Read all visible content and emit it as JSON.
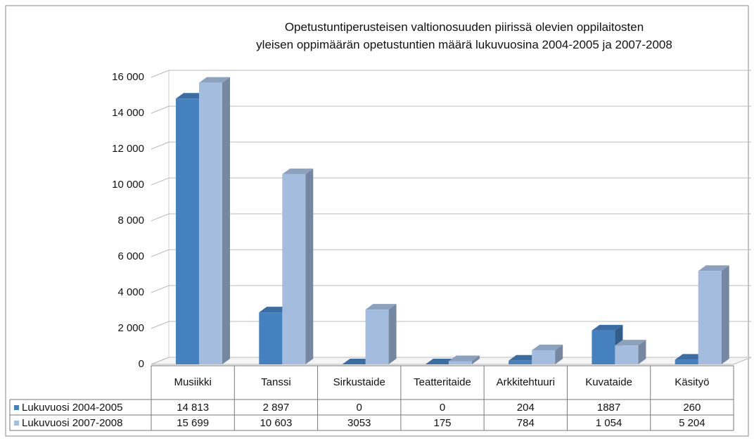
{
  "chart_data": {
    "type": "bar3d",
    "title": "Opetustuntiperusteisen valtionosuuden piirissä olevien oppilaitosten\nyleisen oppimäärän opetustuntien määrä lukuvuosina 2004-2005 ja 2007-2008",
    "categories": [
      "Musiikki",
      "Tanssi",
      "Sirkustaide",
      "Teatteritaide",
      "Arkkitehtuuri",
      "Kuvataide",
      "Käsityö"
    ],
    "series": [
      {
        "name": "Lukuvuosi 2004-2005",
        "color": "#4580bf",
        "values": [
          14813,
          2897,
          0,
          0,
          204,
          1887,
          260
        ],
        "value_labels": [
          "14 813",
          "2 897",
          "0",
          "0",
          "204",
          "1887",
          "260"
        ]
      },
      {
        "name": "Lukuvuosi 2007-2008",
        "color": "#a4bddf",
        "values": [
          15699,
          10603,
          3053,
          175,
          784,
          1054,
          5204
        ],
        "value_labels": [
          "15 699",
          "10 603",
          "3053",
          "175",
          "784",
          "1 054",
          "5 204"
        ]
      }
    ],
    "ylim": [
      0,
      16000
    ],
    "yticks": [
      0,
      {
        "value": 2000,
        "label": "2 000"
      },
      {
        "value": 4000,
        "label": "4 000"
      },
      {
        "value": 6000,
        "label": "6 000"
      },
      {
        "value": 8000,
        "label": "8 000"
      },
      {
        "value": 10000,
        "label": "10 000"
      },
      {
        "value": 12000,
        "label": "12 000"
      },
      {
        "value": 14000,
        "label": "14 000"
      },
      {
        "value": 16000,
        "label": "16 000"
      }
    ],
    "grid": true,
    "data_table": true
  }
}
